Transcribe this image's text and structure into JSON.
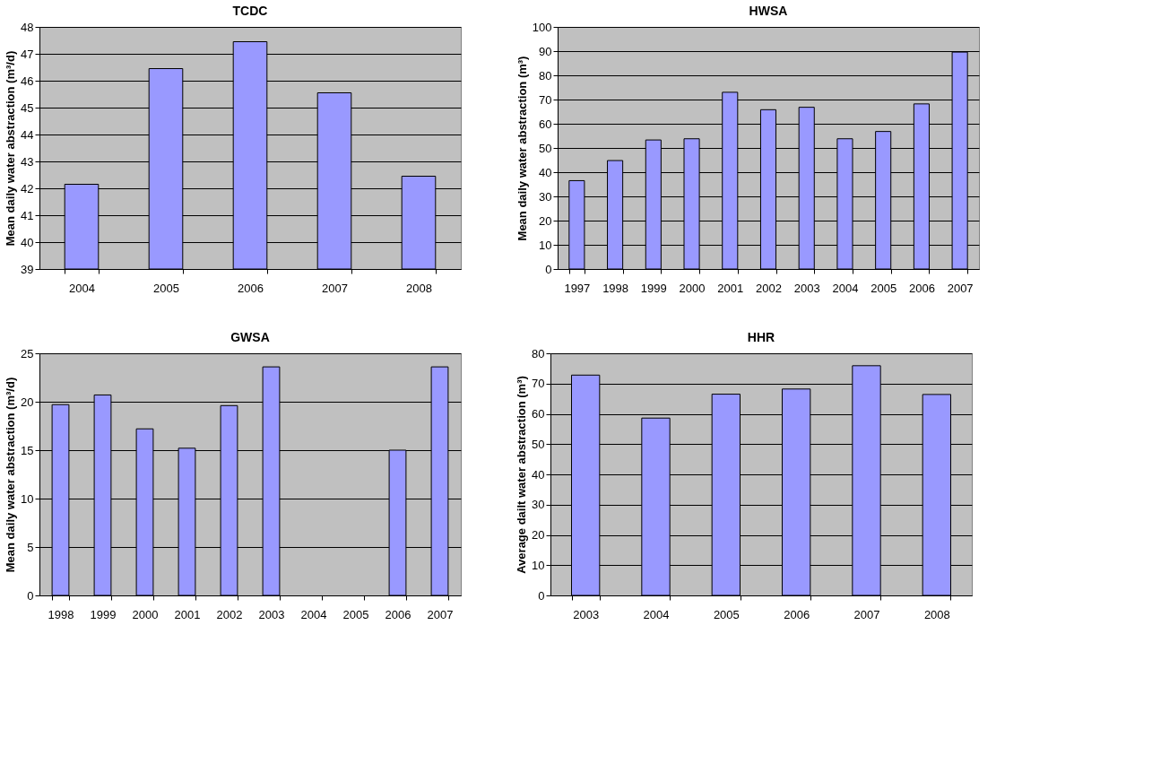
{
  "chart_data": [
    {
      "type": "bar",
      "title": "TCDC",
      "ylabel": "Mean daily water abstraction (m³/d)",
      "categories": [
        "2004",
        "2005",
        "2006",
        "2007",
        "2008"
      ],
      "values": [
        42.15,
        46.45,
        47.45,
        45.55,
        42.45
      ],
      "color": "#9999ff",
      "ylim": [
        39,
        48
      ],
      "yticks": [
        39,
        40,
        41,
        42,
        43,
        44,
        45,
        46,
        47,
        48
      ],
      "grid": "y"
    },
    {
      "type": "bar",
      "title": "HWSA",
      "ylabel": "Mean daily water abstraction (m³)",
      "categories": [
        "1997",
        "1998",
        "1999",
        "2000",
        "2001",
        "2002",
        "2003",
        "2004",
        "2005",
        "2006",
        "2007"
      ],
      "values": [
        36.5,
        44.8,
        53.3,
        53.8,
        73,
        65.8,
        66.8,
        53.8,
        56.8,
        68.2,
        89.6
      ],
      "color": "#9999ff",
      "ylim": [
        0,
        100
      ],
      "yticks": [
        0,
        10,
        20,
        30,
        40,
        50,
        60,
        70,
        80,
        90,
        100
      ],
      "grid": "y"
    },
    {
      "type": "bar",
      "title": "GWSA",
      "ylabel": "Mean daily water abstraction (m³/d)",
      "categories": [
        "1998",
        "1999",
        "2000",
        "2001",
        "2002",
        "2003",
        "2004",
        "2005",
        "2006",
        "2007"
      ],
      "values": [
        19.7,
        20.7,
        17.2,
        15.2,
        19.6,
        23.6,
        null,
        null,
        15.0,
        23.6
      ],
      "color": "#9999ff",
      "ylim": [
        0,
        25
      ],
      "yticks": [
        0,
        5,
        10,
        15,
        20,
        25
      ],
      "grid": "y"
    },
    {
      "type": "bar",
      "title": "HHR",
      "ylabel": "Average dailt water abstraction (m³)",
      "categories": [
        "2003",
        "2004",
        "2005",
        "2006",
        "2007",
        "2008"
      ],
      "values": [
        72.8,
        58.6,
        66.5,
        68.2,
        75.9,
        66.4
      ],
      "color": "#9999ff",
      "ylim": [
        0,
        80
      ],
      "yticks": [
        0,
        10,
        20,
        30,
        40,
        50,
        60,
        70,
        80
      ],
      "grid": "y"
    }
  ]
}
